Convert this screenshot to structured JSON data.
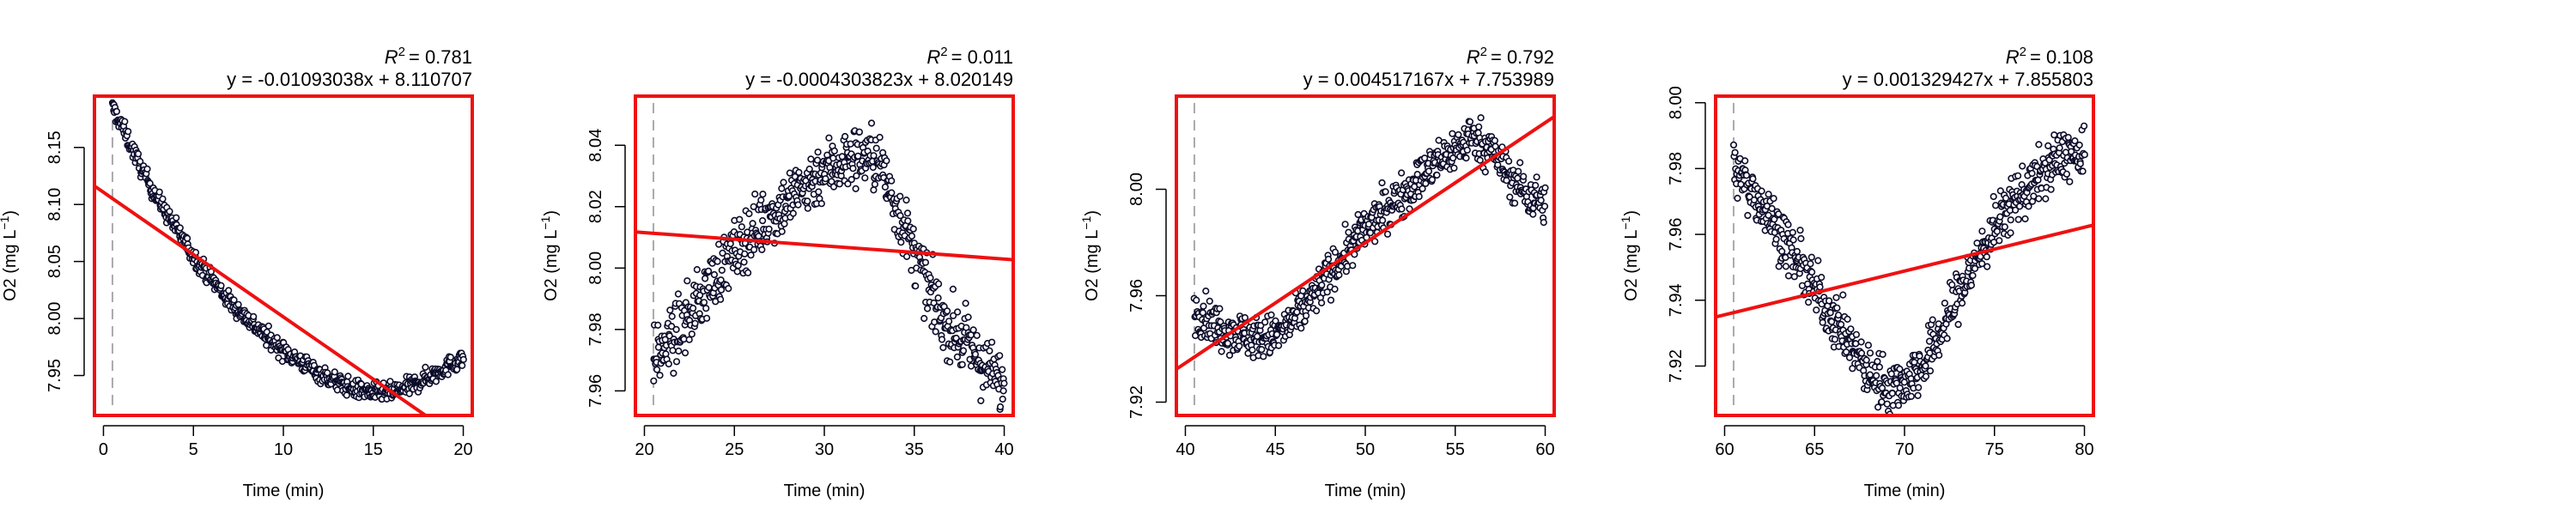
{
  "colors": {
    "frame": "#ee1111",
    "fit_line": "#ee1111",
    "points_fill": "#ffffff",
    "points_edge": "#0b0b2a",
    "start_marker": "#aaaaaa"
  },
  "chart_data": [
    {
      "type": "scatter",
      "r2_label": "R",
      "r2_value": "= 0.781",
      "equation": "y = -0.01093038x + 8.110707",
      "xlabel": "Time (min)",
      "ylabel_main": "O2 (mg L",
      "ylabel_exp": "−1",
      "ylabel_close": ")",
      "xlim": [
        -0.5,
        20.5
      ],
      "ylim": [
        7.915,
        8.195
      ],
      "xticks": [
        "0",
        "5",
        "10",
        "15",
        "20"
      ],
      "yticks": [
        "7.95",
        "8.00",
        "8.05",
        "8.10",
        "8.15"
      ],
      "start_marker_x": 0.5,
      "fit": {
        "slope": -0.01093038,
        "intercept": 8.110707
      },
      "scatter_trend": [
        [
          0.5,
          8.185
        ],
        [
          1,
          8.17
        ],
        [
          2,
          8.135
        ],
        [
          3,
          8.105
        ],
        [
          4,
          8.08
        ],
        [
          5,
          8.055
        ],
        [
          6,
          8.035
        ],
        [
          7,
          8.015
        ],
        [
          8,
          8.0
        ],
        [
          9,
          7.985
        ],
        [
          10,
          7.972
        ],
        [
          11,
          7.962
        ],
        [
          12,
          7.952
        ],
        [
          13,
          7.944
        ],
        [
          14,
          7.938
        ],
        [
          15,
          7.935
        ],
        [
          16,
          7.935
        ],
        [
          17,
          7.94
        ],
        [
          18,
          7.948
        ],
        [
          19,
          7.957
        ],
        [
          20,
          7.965
        ]
      ],
      "noise": 0.004
    },
    {
      "type": "scatter",
      "r2_label": "R",
      "r2_value": "= 0.011",
      "equation": "y = -0.0004303823x + 8.020149",
      "xlabel": "Time (min)",
      "ylabel_main": "O2 (mg L",
      "ylabel_exp": "−1",
      "ylabel_close": ")",
      "xlim": [
        19.5,
        40.5
      ],
      "ylim": [
        7.952,
        8.056
      ],
      "xticks": [
        "20",
        "25",
        "30",
        "35",
        "40"
      ],
      "yticks": [
        "7.96",
        "7.98",
        "8.00",
        "8.02",
        "8.04"
      ],
      "start_marker_x": 20.5,
      "fit": {
        "slope": -0.0004303823,
        "intercept": 8.020149
      },
      "scatter_trend": [
        [
          20.5,
          7.97
        ],
        [
          22,
          7.98
        ],
        [
          24,
          7.998
        ],
        [
          26,
          8.012
        ],
        [
          28,
          8.022
        ],
        [
          30,
          8.032
        ],
        [
          32,
          8.037
        ],
        [
          33,
          8.035
        ],
        [
          34,
          8.02
        ],
        [
          35,
          8.005
        ],
        [
          36,
          7.99
        ],
        [
          37,
          7.98
        ],
        [
          38,
          7.975
        ],
        [
          39,
          7.967
        ],
        [
          40,
          7.962
        ]
      ],
      "noise": 0.005
    },
    {
      "type": "scatter",
      "r2_label": "R",
      "r2_value": "= 0.792",
      "equation": "y = 0.004517167x + 7.753989",
      "xlabel": "Time (min)",
      "ylabel_main": "O2 (mg L",
      "ylabel_exp": "−1",
      "ylabel_close": ")",
      "xlim": [
        39.5,
        60.5
      ],
      "ylim": [
        7.915,
        8.035
      ],
      "xticks": [
        "40",
        "45",
        "50",
        "55",
        "60"
      ],
      "yticks": [
        "7.92",
        "7.96",
        "8.00"
      ],
      "start_marker_x": 40.5,
      "fit": {
        "slope": 0.004517167,
        "intercept": 7.753989
      },
      "scatter_trend": [
        [
          40.5,
          7.955
        ],
        [
          42,
          7.948
        ],
        [
          44,
          7.944
        ],
        [
          45,
          7.945
        ],
        [
          46,
          7.95
        ],
        [
          48,
          7.968
        ],
        [
          50,
          7.985
        ],
        [
          52,
          7.998
        ],
        [
          54,
          8.01
        ],
        [
          55,
          8.015
        ],
        [
          56,
          8.02
        ],
        [
          57,
          8.015
        ],
        [
          58,
          8.005
        ],
        [
          59,
          7.998
        ],
        [
          60,
          7.995
        ]
      ],
      "noise": 0.004
    },
    {
      "type": "scatter",
      "r2_label": "R",
      "r2_value": "= 0.108",
      "equation": "y = 0.001329427x + 7.855803",
      "xlabel": "Time (min)",
      "ylabel_main": "O2 (mg L",
      "ylabel_exp": "−1",
      "ylabel_close": ")",
      "xlim": [
        59.5,
        80.5
      ],
      "ylim": [
        7.905,
        8.002
      ],
      "xticks": [
        "60",
        "65",
        "70",
        "75",
        "80"
      ],
      "yticks": [
        "7.92",
        "7.94",
        "7.96",
        "7.98",
        "8.00"
      ],
      "start_marker_x": 60.5,
      "fit": {
        "slope": 0.001329427,
        "intercept": 7.855803
      },
      "scatter_trend": [
        [
          60.5,
          7.98
        ],
        [
          62,
          7.97
        ],
        [
          64,
          7.952
        ],
        [
          66,
          7.935
        ],
        [
          68,
          7.918
        ],
        [
          69,
          7.914
        ],
        [
          70,
          7.915
        ],
        [
          71,
          7.92
        ],
        [
          72,
          7.93
        ],
        [
          73,
          7.942
        ],
        [
          74,
          7.952
        ],
        [
          75,
          7.962
        ],
        [
          76,
          7.97
        ],
        [
          77,
          7.975
        ],
        [
          78,
          7.98
        ],
        [
          79,
          7.985
        ],
        [
          80,
          7.982
        ]
      ],
      "noise": 0.004
    }
  ]
}
